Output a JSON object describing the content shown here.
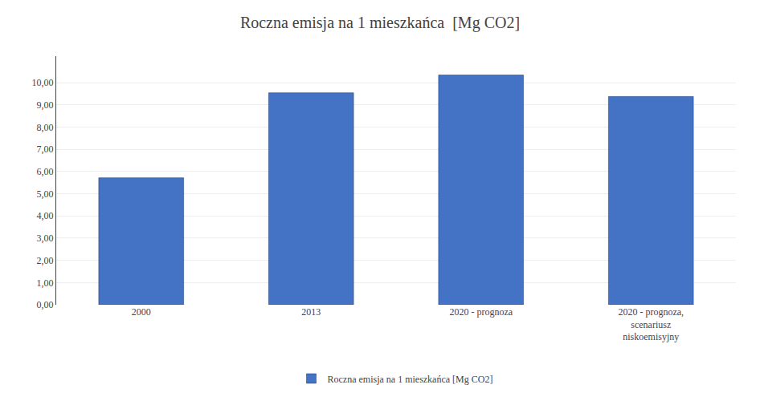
{
  "chart_data": {
    "type": "bar",
    "title": "Roczna emisja na 1 mieszkańca  [Mg CO2]",
    "categories": [
      "2000",
      "2013",
      "2020 - prognoza",
      "2020 - prognoza,\nscenariusz\nniskoemisyjny"
    ],
    "series": [
      {
        "name": "Roczna emisja na 1 mieszkańca [Mg CO2]",
        "color": "#4472C4",
        "values": [
          5.72,
          9.55,
          10.35,
          9.38
        ]
      }
    ],
    "ylim": [
      0,
      11.2
    ],
    "yticks": [
      {
        "value": 0,
        "label": "0,00"
      },
      {
        "value": 1,
        "label": "1,00"
      },
      {
        "value": 2,
        "label": "2,00"
      },
      {
        "value": 3,
        "label": "3,00"
      },
      {
        "value": 4,
        "label": "4,00"
      },
      {
        "value": 5,
        "label": "5,00"
      },
      {
        "value": 6,
        "label": "6,00"
      },
      {
        "value": 7,
        "label": "7,00"
      },
      {
        "value": 8,
        "label": "8,00"
      },
      {
        "value": 9,
        "label": "9,00"
      },
      {
        "value": 10,
        "label": "10,00"
      }
    ],
    "grid": true,
    "legend": "bottom"
  }
}
